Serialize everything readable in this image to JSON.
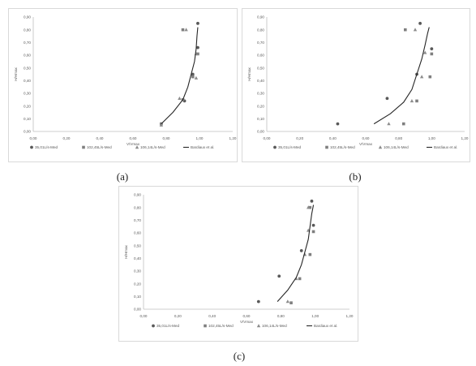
{
  "captions": [
    "(a)",
    "(b)",
    "(c)"
  ],
  "colors": {
    "axis": "#bfbfbf",
    "tick_text": "#595959",
    "s1": "#595959",
    "s2": "#7f7f7f",
    "s3": "#8c8c8c",
    "line": "#262626",
    "panel_border": "#d9d9d9"
  },
  "chart_data": [
    {
      "type": "scatter",
      "title": "",
      "xlabel": "V/Vmax",
      "ylabel": "H/Hmax",
      "xlim": [
        0,
        1.2
      ],
      "ylim": [
        0,
        0.9
      ],
      "xticks": [
        "0,00",
        "0,20",
        "0,40",
        "0,60",
        "0,80",
        "1,00",
        "1,20"
      ],
      "yticks": [
        "0,00",
        "0,10",
        "0,20",
        "0,30",
        "0,40",
        "0,50",
        "0,60",
        "0,70",
        "0,80",
        "0,90"
      ],
      "grid": false,
      "legend_position": "bottom",
      "series": [
        {
          "name": "35,01L/s-Med",
          "marker": "circle",
          "points": [
            [
              0.77,
              0.06
            ],
            [
              0.91,
              0.24
            ],
            [
              0.96,
              0.45
            ],
            [
              0.99,
              0.66
            ],
            [
              0.99,
              0.85
            ]
          ]
        },
        {
          "name": "102,45L/s-Med",
          "marker": "square",
          "points": [
            [
              0.77,
              0.06
            ],
            [
              0.9,
              0.25
            ],
            [
              0.96,
              0.43
            ],
            [
              0.99,
              0.61
            ],
            [
              0.9,
              0.8
            ]
          ]
        },
        {
          "name": "106,14L/s-Med",
          "marker": "triangle",
          "points": [
            [
              0.77,
              0.05
            ],
            [
              0.88,
              0.26
            ],
            [
              0.98,
              0.42
            ],
            [
              0.98,
              0.61
            ],
            [
              0.92,
              0.8
            ]
          ]
        },
        {
          "name": "Bardiaux et al.",
          "marker": "line",
          "points": [
            [
              0.77,
              0.06
            ],
            [
              0.84,
              0.15
            ],
            [
              0.9,
              0.25
            ],
            [
              0.93,
              0.35
            ],
            [
              0.95,
              0.45
            ],
            [
              0.97,
              0.55
            ],
            [
              0.98,
              0.65
            ],
            [
              0.985,
              0.75
            ],
            [
              0.99,
              0.82
            ]
          ]
        }
      ]
    },
    {
      "type": "scatter",
      "title": "",
      "xlabel": "V/Vmax",
      "ylabel": "H/Hmax",
      "xlim": [
        0,
        1.2
      ],
      "ylim": [
        0,
        0.9
      ],
      "xticks": [
        "0,00",
        "0,20",
        "0,40",
        "0,60",
        "0,80",
        "1,00",
        "1,20"
      ],
      "yticks": [
        "0,00",
        "0,10",
        "0,20",
        "0,30",
        "0,40",
        "0,50",
        "0,60",
        "0,70",
        "0,80",
        "0,90"
      ],
      "grid": false,
      "legend_position": "bottom",
      "series": [
        {
          "name": "35,01L/s-Med",
          "marker": "circle",
          "points": [
            [
              0.43,
              0.06
            ],
            [
              0.73,
              0.26
            ],
            [
              0.91,
              0.45
            ],
            [
              1.0,
              0.65
            ],
            [
              0.93,
              0.85
            ]
          ]
        },
        {
          "name": "102,45L/s-Med",
          "marker": "square",
          "points": [
            [
              0.83,
              0.06
            ],
            [
              0.91,
              0.24
            ],
            [
              0.99,
              0.43
            ],
            [
              1.0,
              0.61
            ],
            [
              0.84,
              0.8
            ]
          ]
        },
        {
          "name": "106,14L/s-Med",
          "marker": "triangle",
          "points": [
            [
              0.74,
              0.06
            ],
            [
              0.88,
              0.24
            ],
            [
              0.94,
              0.43
            ],
            [
              0.96,
              0.62
            ],
            [
              0.9,
              0.8
            ]
          ]
        },
        {
          "name": "Bardiaux et al.",
          "marker": "line",
          "points": [
            [
              0.65,
              0.06
            ],
            [
              0.75,
              0.14
            ],
            [
              0.83,
              0.23
            ],
            [
              0.88,
              0.33
            ],
            [
              0.91,
              0.45
            ],
            [
              0.94,
              0.57
            ],
            [
              0.96,
              0.68
            ],
            [
              0.975,
              0.77
            ],
            [
              0.985,
              0.82
            ]
          ]
        }
      ]
    },
    {
      "type": "scatter",
      "title": "",
      "xlabel": "V/Vmax",
      "ylabel": "H/Hmax",
      "xlim": [
        0,
        1.2
      ],
      "ylim": [
        0,
        0.9
      ],
      "xticks": [
        "0,00",
        "0,20",
        "0,40",
        "0,60",
        "0,80",
        "1,00",
        "1,20"
      ],
      "yticks": [
        "0,00",
        "0,10",
        "0,20",
        "0,30",
        "0,40",
        "0,50",
        "0,60",
        "0,70",
        "0,80",
        "0,90"
      ],
      "grid": false,
      "legend_position": "bottom",
      "series": [
        {
          "name": "35,01L/s-Med",
          "marker": "circle",
          "points": [
            [
              0.67,
              0.06
            ],
            [
              0.79,
              0.26
            ],
            [
              0.92,
              0.46
            ],
            [
              0.99,
              0.66
            ],
            [
              0.98,
              0.85
            ]
          ]
        },
        {
          "name": "102,45L/s-Med",
          "marker": "square",
          "points": [
            [
              0.86,
              0.05
            ],
            [
              0.91,
              0.24
            ],
            [
              0.97,
              0.43
            ],
            [
              0.99,
              0.61
            ],
            [
              0.97,
              0.8
            ]
          ]
        },
        {
          "name": "106,14L/s-Med",
          "marker": "triangle",
          "points": [
            [
              0.84,
              0.06
            ],
            [
              0.89,
              0.24
            ],
            [
              0.94,
              0.43
            ],
            [
              0.96,
              0.62
            ],
            [
              0.96,
              0.8
            ]
          ]
        },
        {
          "name": "Bardiaux et al.",
          "marker": "line",
          "points": [
            [
              0.78,
              0.06
            ],
            [
              0.84,
              0.15
            ],
            [
              0.89,
              0.25
            ],
            [
              0.92,
              0.35
            ],
            [
              0.94,
              0.45
            ],
            [
              0.96,
              0.55
            ],
            [
              0.97,
              0.65
            ],
            [
              0.98,
              0.75
            ],
            [
              0.99,
              0.82
            ]
          ]
        }
      ]
    }
  ]
}
